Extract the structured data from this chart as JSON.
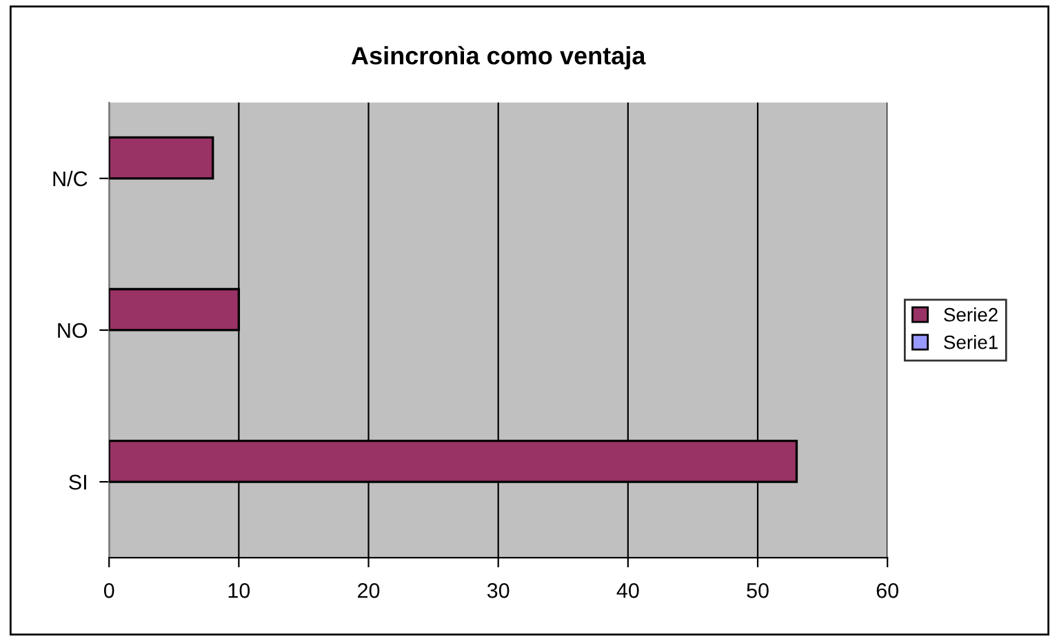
{
  "chart_data": {
    "type": "bar",
    "orientation": "horizontal",
    "title": "Asincronìa como ventaja",
    "categories": [
      "N/C",
      "NO",
      "SI"
    ],
    "series": [
      {
        "name": "Serie2",
        "color": "#993366",
        "values": [
          8,
          10,
          53
        ]
      },
      {
        "name": "Serie1",
        "color": "#9999ff",
        "values": [
          null,
          null,
          null
        ]
      }
    ],
    "xlim": [
      0,
      60
    ],
    "xticks": [
      0,
      10,
      20,
      30,
      40,
      50,
      60
    ],
    "grid": "x",
    "legend": "right"
  }
}
